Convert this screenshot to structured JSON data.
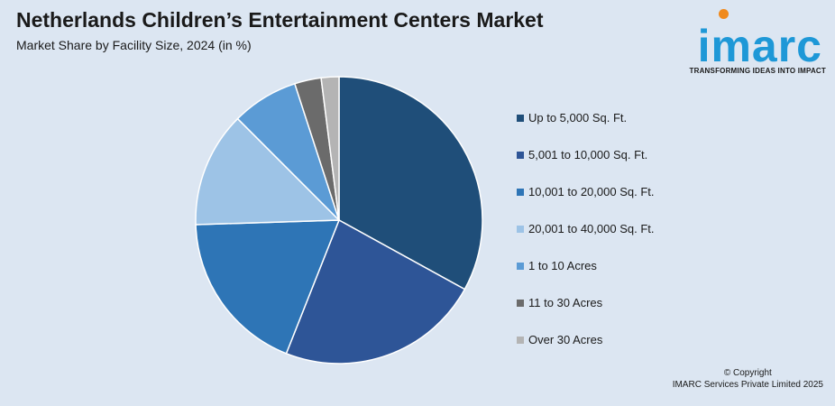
{
  "header": {
    "title": "Netherlands Children’s Entertainment Centers Market",
    "subtitle": "Market Share by Facility Size, 2024 (in %)"
  },
  "logo": {
    "word": "imarc",
    "tagline": "TRANSFORMING IDEAS INTO IMPACT",
    "brand_color": "#1e98d7",
    "accent_color": "#f08a1d"
  },
  "chart_data": {
    "type": "pie",
    "title": "Netherlands Children’s Entertainment Centers Market",
    "subtitle": "Market Share by Facility Size, 2024 (in %)",
    "legend_position": "right",
    "slices": [
      {
        "label": "Up to 5,000 Sq. Ft.",
        "value": 33,
        "color": "#1f4e79"
      },
      {
        "label": "5,001 to 10,000 Sq. Ft.",
        "value": 23,
        "color": "#2e5597"
      },
      {
        "label": "10,001 to 20,000 Sq. Ft.",
        "value": 18.5,
        "color": "#2e75b6"
      },
      {
        "label": "20,001 to 40,000 Sq. Ft.",
        "value": 13,
        "color": "#9dc3e6"
      },
      {
        "label": "1 to 10 Acres",
        "value": 7.5,
        "color": "#5b9bd5"
      },
      {
        "label": "11 to 30 Acres",
        "value": 3,
        "color": "#6b6b6b"
      },
      {
        "label": "Over 30 Acres",
        "value": 2,
        "color": "#b4b4b4"
      }
    ]
  },
  "footer": {
    "copyright_line1": "© Copyright",
    "copyright_line2": "IMARC Services Private Limited 2025"
  }
}
